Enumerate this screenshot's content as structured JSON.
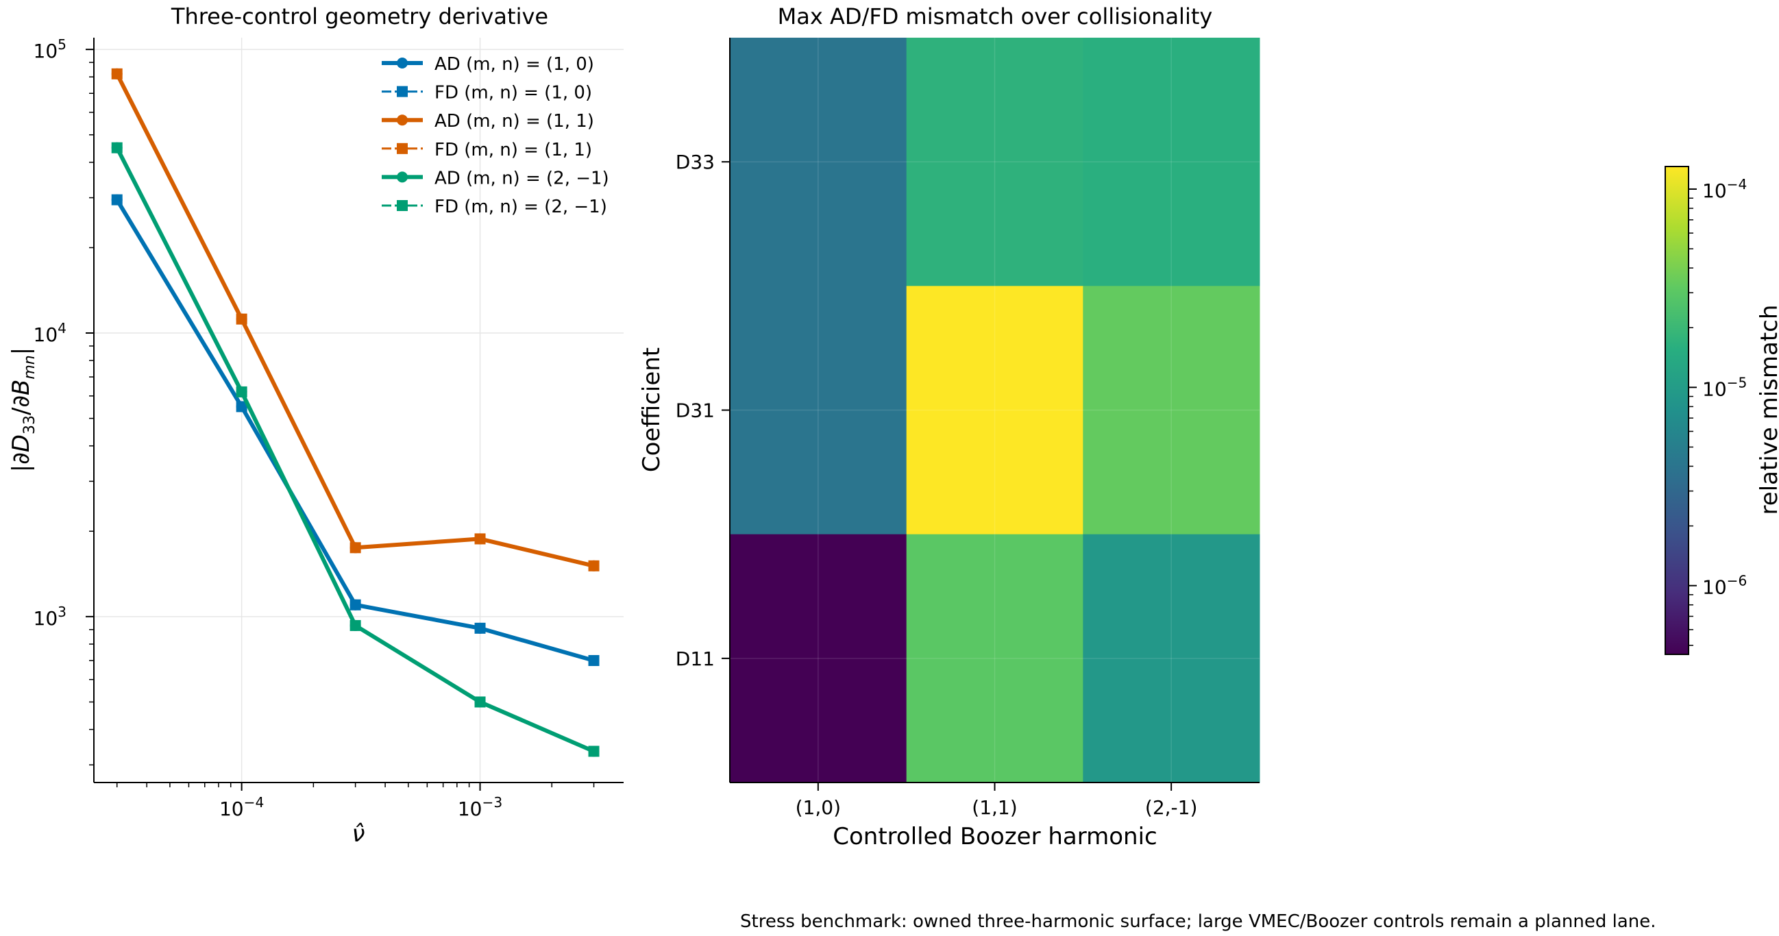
{
  "chart_data": [
    {
      "type": "line",
      "title": "Three-control geometry derivative",
      "xlabel": "ν̂",
      "ylabel": "|∂D₃₃/∂B_mn|",
      "x_scale": "log",
      "y_scale": "log",
      "xlim": [
        2.4e-05,
        0.004
      ],
      "ylim": [
        260,
        110000
      ],
      "x_ticks": [
        {
          "value": 0.0001,
          "base": "10",
          "exp": "−4"
        },
        {
          "value": 0.001,
          "base": "10",
          "exp": "−3"
        }
      ],
      "y_ticks": [
        {
          "value": 1000,
          "base": "10",
          "exp": "3"
        },
        {
          "value": 10000,
          "base": "10",
          "exp": "4"
        },
        {
          "value": 100000,
          "base": "10",
          "exp": "5"
        }
      ],
      "grid": true,
      "legend_position": "top-right",
      "x": [
        3e-05,
        0.0001,
        0.0003,
        0.001,
        0.003
      ],
      "series": [
        {
          "name": "AD (m, n) = (1, 0)",
          "color": "#0072B2",
          "marker": "circle",
          "values": [
            29500,
            5500,
            1100,
            910,
            700
          ]
        },
        {
          "name": "FD (m, n) = (1, 0)",
          "color": "#0072B2",
          "marker": "square",
          "values": [
            29500,
            5500,
            1100,
            910,
            700
          ]
        },
        {
          "name": "AD (m, n) = (1, 1)",
          "color": "#D55E00",
          "marker": "circle",
          "values": [
            82000,
            11200,
            1750,
            1880,
            1510
          ]
        },
        {
          "name": "FD (m, n) = (1, 1)",
          "color": "#D55E00",
          "marker": "square",
          "values": [
            82000,
            11200,
            1750,
            1880,
            1510
          ]
        },
        {
          "name": "AD (m, n) = (2, −1)",
          "color": "#009E73",
          "marker": "circle",
          "values": [
            45000,
            6200,
            930,
            500,
            335
          ]
        },
        {
          "name": "FD (m, n) = (2, −1)",
          "color": "#009E73",
          "marker": "square",
          "values": [
            45000,
            6200,
            930,
            500,
            335
          ]
        }
      ]
    },
    {
      "type": "heatmap",
      "title": "Max AD/FD mismatch over collisionality",
      "xlabel": "Controlled Boozer harmonic",
      "ylabel": "Coefficient",
      "x_categories": [
        "(1,0)",
        "(1,1)",
        "(2,-1)"
      ],
      "y_categories": [
        "D33",
        "D31",
        "D11"
      ],
      "values": [
        [
          4e-06,
          1.7e-05,
          1.6e-05
        ],
        [
          4e-06,
          0.00013,
          3.3e-05
        ],
        [
          4.5e-07,
          3e-05,
          9e-06
        ]
      ],
      "color_scale": "log",
      "colormap": "viridis",
      "colorbar": {
        "label": "relative mismatch",
        "range": [
          4.5e-07,
          0.00013
        ],
        "ticks": [
          {
            "value": 1e-06,
            "base": "10",
            "exp": "−6"
          },
          {
            "value": 1e-05,
            "base": "10",
            "exp": "−5"
          },
          {
            "value": 0.0001,
            "base": "10",
            "exp": "−4"
          }
        ]
      }
    }
  ],
  "caption": "Stress benchmark: owned three-harmonic surface; large VMEC/Boozer controls remain a planned lane."
}
